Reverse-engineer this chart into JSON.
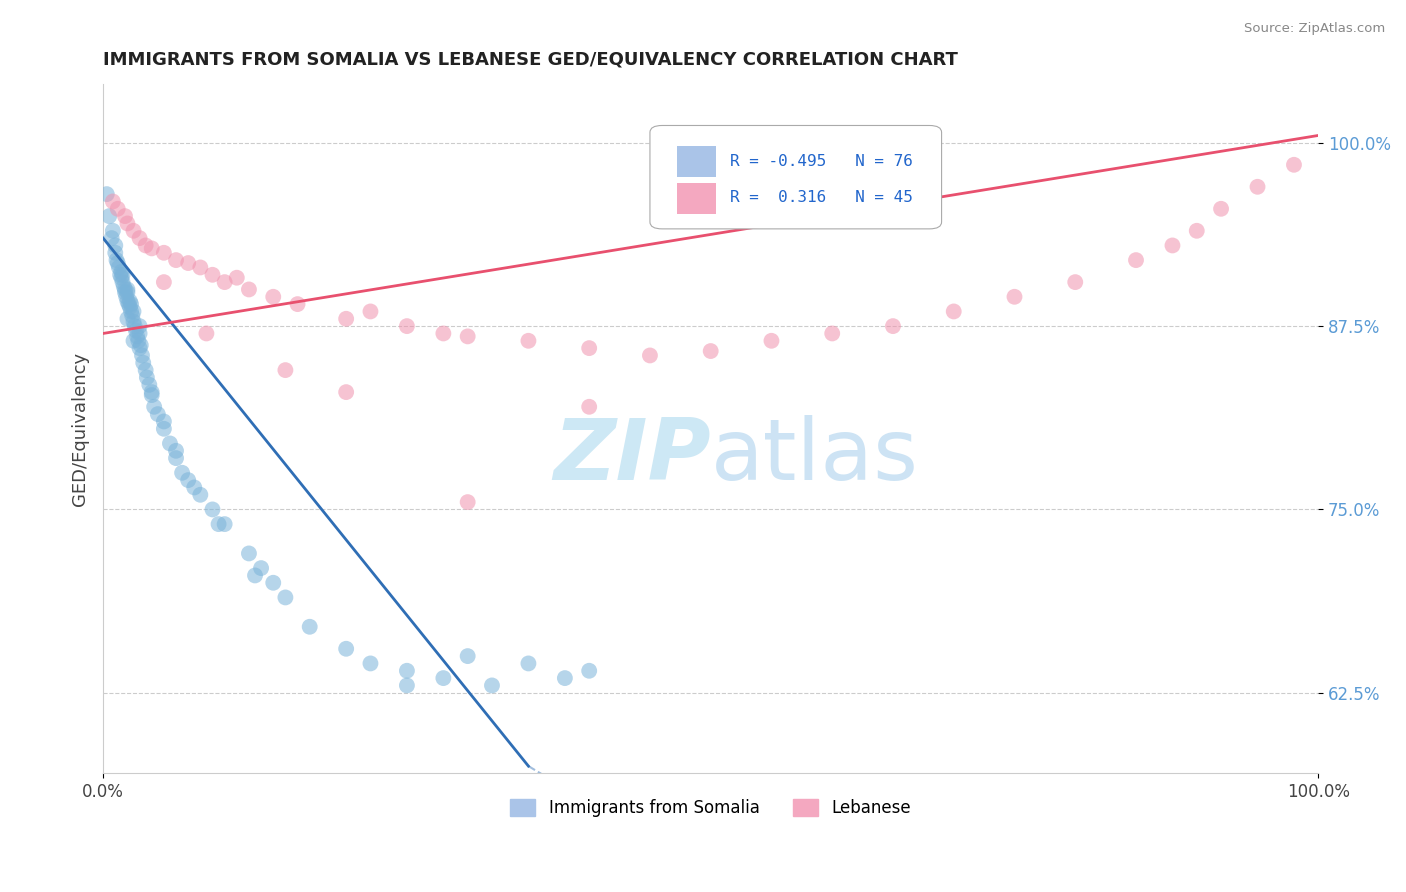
{
  "title": "IMMIGRANTS FROM SOMALIA VS LEBANESE GED/EQUIVALENCY CORRELATION CHART",
  "source_text": "Source: ZipAtlas.com",
  "ylabel": "GED/Equivalency",
  "yticks": [
    62.5,
    75.0,
    87.5,
    100.0
  ],
  "ytick_labels": [
    "62.5%",
    "75.0%",
    "87.5%",
    "100.0%"
  ],
  "xlim": [
    0.0,
    100.0
  ],
  "ylim": [
    57.0,
    104.0
  ],
  "somalia_R": -0.495,
  "somalia_N": 76,
  "lebanese_R": 0.316,
  "lebanese_N": 45,
  "somalia_color": "#7ab3d9",
  "lebanese_color": "#f093ae",
  "somalia_line_color": "#2f6eb5",
  "lebanese_line_color": "#e8506e",
  "somalia_line_solid_end": 35.0,
  "watermark_color": "#cde8f5",
  "somalia_points_x": [
    0.3,
    0.5,
    0.7,
    0.8,
    1.0,
    1.0,
    1.1,
    1.2,
    1.3,
    1.4,
    1.5,
    1.5,
    1.6,
    1.6,
    1.7,
    1.8,
    1.8,
    1.9,
    2.0,
    2.0,
    2.0,
    2.1,
    2.2,
    2.2,
    2.3,
    2.3,
    2.4,
    2.5,
    2.5,
    2.6,
    2.7,
    2.8,
    2.9,
    3.0,
    3.0,
    3.1,
    3.2,
    3.3,
    3.5,
    3.6,
    3.8,
    4.0,
    4.2,
    4.5,
    5.0,
    5.5,
    6.0,
    6.5,
    7.0,
    8.0,
    9.0,
    10.0,
    12.0,
    13.0,
    14.0,
    15.0,
    17.0,
    20.0,
    22.0,
    25.0,
    28.0,
    30.0,
    32.0,
    35.0,
    38.0,
    40.0,
    2.0,
    2.5,
    3.0,
    4.0,
    5.0,
    6.0,
    7.5,
    9.5,
    12.5,
    25.0
  ],
  "somalia_points_y": [
    96.5,
    95.0,
    93.5,
    94.0,
    92.5,
    93.0,
    92.0,
    91.8,
    91.5,
    91.0,
    91.2,
    90.8,
    90.5,
    91.0,
    90.2,
    90.0,
    89.8,
    89.5,
    89.2,
    90.0,
    89.8,
    89.0,
    88.8,
    89.2,
    88.5,
    89.0,
    88.2,
    87.8,
    88.5,
    87.5,
    87.2,
    86.8,
    86.5,
    86.0,
    87.0,
    86.2,
    85.5,
    85.0,
    84.5,
    84.0,
    83.5,
    82.8,
    82.0,
    81.5,
    80.5,
    79.5,
    78.5,
    77.5,
    77.0,
    76.0,
    75.0,
    74.0,
    72.0,
    71.0,
    70.0,
    69.0,
    67.0,
    65.5,
    64.5,
    64.0,
    63.5,
    65.0,
    63.0,
    64.5,
    63.5,
    64.0,
    88.0,
    86.5,
    87.5,
    83.0,
    81.0,
    79.0,
    76.5,
    74.0,
    70.5,
    63.0
  ],
  "lebanese_points_x": [
    0.8,
    1.2,
    1.8,
    2.0,
    2.5,
    3.0,
    3.5,
    4.0,
    5.0,
    6.0,
    7.0,
    8.0,
    9.0,
    10.0,
    11.0,
    12.0,
    14.0,
    16.0,
    20.0,
    22.0,
    25.0,
    28.0,
    30.0,
    35.0,
    40.0,
    45.0,
    50.0,
    55.0,
    60.0,
    65.0,
    70.0,
    75.0,
    80.0,
    85.0,
    88.0,
    90.0,
    92.0,
    95.0,
    98.0,
    5.0,
    8.5,
    15.0,
    20.0,
    30.0,
    40.0
  ],
  "lebanese_points_y": [
    96.0,
    95.5,
    95.0,
    94.5,
    94.0,
    93.5,
    93.0,
    92.8,
    92.5,
    92.0,
    91.8,
    91.5,
    91.0,
    90.5,
    90.8,
    90.0,
    89.5,
    89.0,
    88.0,
    88.5,
    87.5,
    87.0,
    86.8,
    86.5,
    86.0,
    85.5,
    85.8,
    86.5,
    87.0,
    87.5,
    88.5,
    89.5,
    90.5,
    92.0,
    93.0,
    94.0,
    95.5,
    97.0,
    98.5,
    90.5,
    87.0,
    84.5,
    83.0,
    75.5,
    82.0
  ]
}
